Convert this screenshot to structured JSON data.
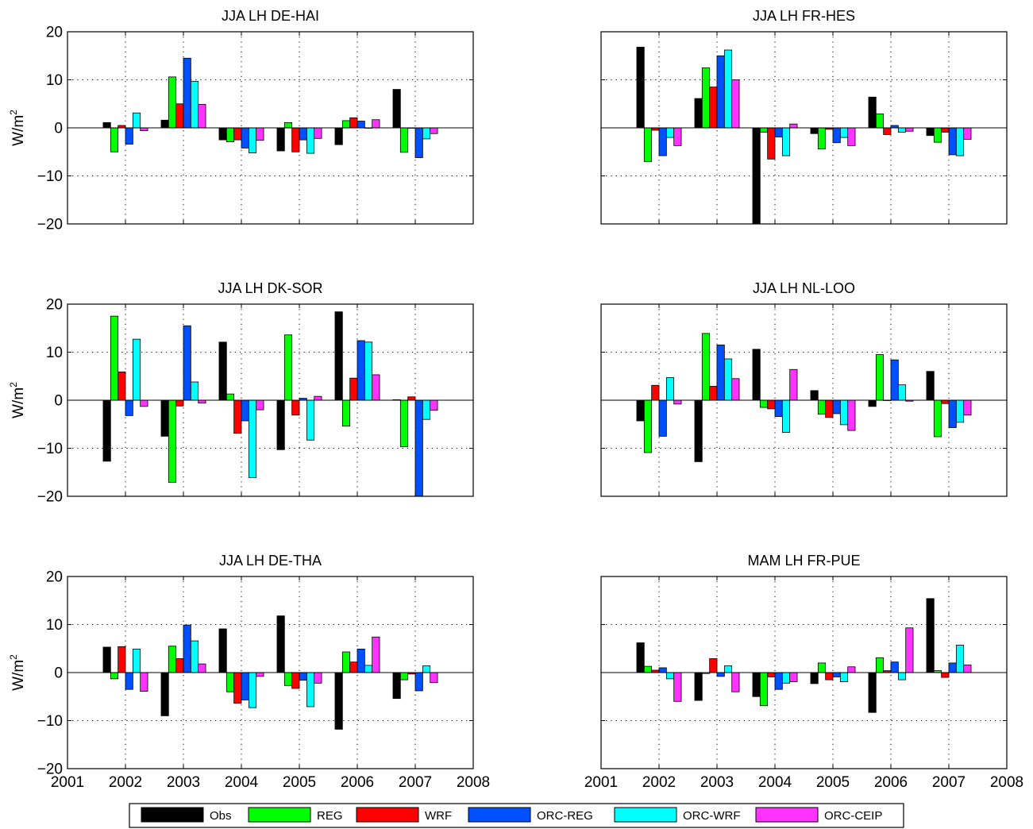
{
  "colors": {
    "Obs": "#000000",
    "REG": "#00ff00",
    "WRF": "#ff0000",
    "ORC-REG": "#0050ff",
    "ORC-WRF": "#00ffff",
    "ORC-CEIP": "#ff33ff"
  },
  "legend": [
    "Obs",
    "REG",
    "WRF",
    "ORC-REG",
    "ORC-WRF",
    "ORC-CEIP"
  ],
  "chart_data": [
    {
      "type": "bar",
      "title": "JJA LH DE-HAI",
      "ylabel": "W/m",
      "ylabel_sup": "2",
      "ylim": [
        -20,
        20
      ],
      "yticks": [
        20,
        10,
        0,
        -10,
        -20
      ],
      "ytick_labels": [
        "20",
        "10",
        "0",
        "−10",
        "−20"
      ],
      "xlim": [
        2001,
        2008
      ],
      "xticks": [
        "2001",
        "2002",
        "2003",
        "2004",
        "2005",
        "2006",
        "2007",
        "2008"
      ],
      "show_xtick_labels": false,
      "grid": true,
      "categories": [
        "2002",
        "2003",
        "2004",
        "2005",
        "2006",
        "2007"
      ],
      "series": [
        {
          "name": "Obs",
          "values": [
            1.1,
            1.6,
            -2.5,
            -4.8,
            -3.5,
            8.0
          ]
        },
        {
          "name": "REG",
          "values": [
            -5.0,
            10.6,
            -2.9,
            1.1,
            1.5,
            -5.1
          ]
        },
        {
          "name": "WRF",
          "values": [
            0.5,
            5.0,
            -2.5,
            -5.0,
            2.1,
            0.0
          ]
        },
        {
          "name": "ORC-REG",
          "values": [
            -3.4,
            14.5,
            -4.2,
            -2.5,
            1.4,
            -6.2
          ]
        },
        {
          "name": "ORC-WRF",
          "values": [
            3.1,
            9.7,
            -5.2,
            -5.3,
            0.0,
            -2.3
          ]
        },
        {
          "name": "ORC-CEIP",
          "values": [
            -0.6,
            4.9,
            -2.6,
            -2.2,
            1.7,
            -1.2
          ]
        }
      ]
    },
    {
      "type": "bar",
      "title": "JJA LH FR-HES",
      "ylabel": "",
      "ylabel_sup": "",
      "ylim": [
        -20,
        20
      ],
      "yticks": [
        20,
        10,
        0,
        -10,
        -20
      ],
      "ytick_labels": [
        "",
        "",
        "",
        "",
        ""
      ],
      "xlim": [
        2001,
        2008
      ],
      "xticks": [
        "2001",
        "2002",
        "2003",
        "2004",
        "2005",
        "2006",
        "2007",
        "2008"
      ],
      "show_xtick_labels": false,
      "grid": true,
      "categories": [
        "2002",
        "2003",
        "2004",
        "2005",
        "2006",
        "2007"
      ],
      "series": [
        {
          "name": "Obs",
          "values": [
            16.8,
            6.1,
            -20.0,
            -1.2,
            6.4,
            -1.6
          ]
        },
        {
          "name": "REG",
          "values": [
            -7.0,
            12.5,
            -0.9,
            -4.4,
            2.9,
            -3.0
          ]
        },
        {
          "name": "WRF",
          "values": [
            -0.5,
            8.5,
            -6.5,
            -0.3,
            -1.4,
            -0.9
          ]
        },
        {
          "name": "ORC-REG",
          "values": [
            -5.8,
            15.0,
            -1.9,
            -3.1,
            0.5,
            -5.6
          ]
        },
        {
          "name": "ORC-WRF",
          "values": [
            -2.0,
            16.2,
            -5.8,
            -2.0,
            -0.9,
            -5.8
          ]
        },
        {
          "name": "ORC-CEIP",
          "values": [
            -3.7,
            10.0,
            0.8,
            -3.7,
            -0.7,
            -2.4
          ]
        }
      ]
    },
    {
      "type": "bar",
      "title": "JJA LH DK-SOR",
      "ylabel": "W/m",
      "ylabel_sup": "2",
      "ylim": [
        -20,
        20
      ],
      "yticks": [
        20,
        10,
        0,
        -10,
        -20
      ],
      "ytick_labels": [
        "20",
        "10",
        "0",
        "−10",
        "−20"
      ],
      "xlim": [
        2001,
        2008
      ],
      "xticks": [
        "2001",
        "2002",
        "2003",
        "2004",
        "2005",
        "2006",
        "2007",
        "2008"
      ],
      "show_xtick_labels": false,
      "grid": true,
      "categories": [
        "2002",
        "2003",
        "2004",
        "2005",
        "2006",
        "2007"
      ],
      "series": [
        {
          "name": "Obs",
          "values": [
            -12.7,
            -7.5,
            12.1,
            -10.3,
            18.4,
            0.1
          ]
        },
        {
          "name": "REG",
          "values": [
            17.5,
            -17.1,
            1.3,
            13.6,
            -5.4,
            -9.7
          ]
        },
        {
          "name": "WRF",
          "values": [
            5.9,
            -1.2,
            -6.9,
            -3.1,
            4.6,
            0.7
          ]
        },
        {
          "name": "ORC-REG",
          "values": [
            -3.2,
            15.5,
            -4.3,
            0.4,
            12.4,
            -20.0
          ]
        },
        {
          "name": "ORC-WRF",
          "values": [
            12.7,
            3.8,
            -16.1,
            -8.3,
            12.1,
            -4.0
          ]
        },
        {
          "name": "ORC-CEIP",
          "values": [
            -1.3,
            -0.6,
            -2.0,
            0.8,
            5.3,
            -2.1
          ]
        }
      ]
    },
    {
      "type": "bar",
      "title": "JJA LH NL-LOO",
      "ylabel": "",
      "ylabel_sup": "",
      "ylim": [
        -20,
        20
      ],
      "yticks": [
        20,
        10,
        0,
        -10,
        -20
      ],
      "ytick_labels": [
        "",
        "",
        "",
        "",
        ""
      ],
      "xlim": [
        2001,
        2008
      ],
      "xticks": [
        "2001",
        "2002",
        "2003",
        "2004",
        "2005",
        "2006",
        "2007",
        "2008"
      ],
      "show_xtick_labels": false,
      "grid": true,
      "categories": [
        "2002",
        "2003",
        "2004",
        "2005",
        "2006",
        "2007"
      ],
      "series": [
        {
          "name": "Obs",
          "values": [
            -4.3,
            -12.8,
            10.6,
            2.0,
            -1.3,
            6.0
          ]
        },
        {
          "name": "REG",
          "values": [
            -10.9,
            13.9,
            -1.5,
            -2.9,
            9.5,
            -7.6
          ]
        },
        {
          "name": "WRF",
          "values": [
            3.1,
            2.9,
            -1.8,
            -3.6,
            0.0,
            -0.7
          ]
        },
        {
          "name": "ORC-REG",
          "values": [
            -7.5,
            11.5,
            -3.4,
            -2.8,
            8.4,
            -5.7
          ]
        },
        {
          "name": "ORC-WRF",
          "values": [
            4.7,
            8.6,
            -6.7,
            -5.1,
            3.2,
            -4.6
          ]
        },
        {
          "name": "ORC-CEIP",
          "values": [
            -0.8,
            4.5,
            6.4,
            -6.3,
            -0.2,
            -3.1
          ]
        }
      ]
    },
    {
      "type": "bar",
      "title": "JJA LH DE-THA",
      "ylabel": "W/m",
      "ylabel_sup": "2",
      "ylim": [
        -20,
        20
      ],
      "yticks": [
        20,
        10,
        0,
        -10,
        -20
      ],
      "ytick_labels": [
        "20",
        "10",
        "0",
        "−10",
        "−20"
      ],
      "xlim": [
        2001,
        2008
      ],
      "xticks": [
        "2001",
        "2002",
        "2003",
        "2004",
        "2005",
        "2006",
        "2007",
        "2008"
      ],
      "show_xtick_labels": true,
      "grid": true,
      "categories": [
        "2002",
        "2003",
        "2004",
        "2005",
        "2006",
        "2007"
      ],
      "series": [
        {
          "name": "Obs",
          "values": [
            5.3,
            -9.0,
            9.1,
            11.8,
            -11.8,
            -5.4
          ]
        },
        {
          "name": "REG",
          "values": [
            -1.3,
            5.5,
            -4.0,
            -2.7,
            4.3,
            -1.5
          ]
        },
        {
          "name": "WRF",
          "values": [
            5.4,
            2.9,
            -6.4,
            -3.3,
            2.2,
            -0.3
          ]
        },
        {
          "name": "ORC-REG",
          "values": [
            -3.5,
            9.9,
            -5.7,
            -1.6,
            4.9,
            -3.8
          ]
        },
        {
          "name": "ORC-WRF",
          "values": [
            4.9,
            6.6,
            -7.3,
            -7.1,
            1.5,
            1.4
          ]
        },
        {
          "name": "ORC-CEIP",
          "values": [
            -3.9,
            1.8,
            -0.8,
            -2.2,
            7.4,
            -2.1
          ]
        }
      ]
    },
    {
      "type": "bar",
      "title": "MAM LH FR-PUE",
      "ylabel": "",
      "ylabel_sup": "",
      "ylim": [
        -20,
        20
      ],
      "yticks": [
        20,
        10,
        0,
        -10,
        -20
      ],
      "ytick_labels": [
        "",
        "",
        "",
        "",
        ""
      ],
      "xlim": [
        2001,
        2008
      ],
      "xticks": [
        "2001",
        "2002",
        "2003",
        "2004",
        "2005",
        "2006",
        "2007",
        "2008"
      ],
      "show_xtick_labels": true,
      "grid": true,
      "categories": [
        "2002",
        "2003",
        "2004",
        "2005",
        "2006",
        "2007"
      ],
      "series": [
        {
          "name": "Obs",
          "values": [
            6.2,
            -5.8,
            -5.0,
            -2.3,
            -8.3,
            15.4
          ]
        },
        {
          "name": "REG",
          "values": [
            1.3,
            -0.2,
            -6.9,
            2.0,
            3.1,
            0.4
          ]
        },
        {
          "name": "WRF",
          "values": [
            0.5,
            2.9,
            -0.9,
            -1.5,
            0.4,
            -1.0
          ]
        },
        {
          "name": "ORC-REG",
          "values": [
            1.0,
            -0.8,
            -3.5,
            -0.9,
            2.2,
            2.0
          ]
        },
        {
          "name": "ORC-WRF",
          "values": [
            -1.3,
            1.4,
            -2.2,
            -1.9,
            -1.5,
            5.7
          ]
        },
        {
          "name": "ORC-CEIP",
          "values": [
            -6.0,
            -4.0,
            -1.9,
            1.2,
            9.3,
            1.6
          ]
        }
      ]
    }
  ]
}
